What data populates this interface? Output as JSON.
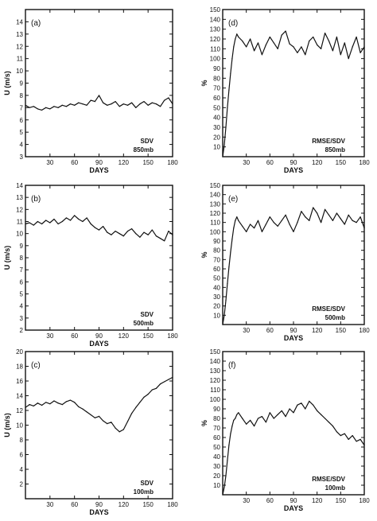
{
  "chart_data": [
    {
      "panel_label": "(a)",
      "type": "line",
      "xlabel": "DAYS",
      "ylabel": "U (m/s)",
      "xlim": [
        0,
        180
      ],
      "ylim": [
        3,
        15
      ],
      "xticks": [
        30,
        60,
        90,
        120,
        150,
        180
      ],
      "yticks": [
        3,
        4,
        5,
        6,
        7,
        8,
        9,
        10,
        11,
        12,
        13,
        14
      ],
      "annotations": [
        "SDV",
        "850mb"
      ],
      "series": [
        {
          "x": [
            0,
            5,
            10,
            15,
            20,
            25,
            30,
            35,
            40,
            45,
            50,
            55,
            60,
            65,
            70,
            75,
            80,
            85,
            90,
            95,
            100,
            105,
            110,
            115,
            120,
            125,
            130,
            135,
            140,
            145,
            150,
            155,
            160,
            165,
            170,
            175,
            180
          ],
          "values": [
            7.2,
            7.0,
            7.1,
            6.9,
            6.8,
            7.0,
            6.9,
            7.1,
            7.0,
            7.2,
            7.1,
            7.3,
            7.2,
            7.4,
            7.3,
            7.2,
            7.6,
            7.5,
            8.0,
            7.4,
            7.2,
            7.3,
            7.5,
            7.1,
            7.3,
            7.2,
            7.4,
            7.0,
            7.3,
            7.5,
            7.2,
            7.4,
            7.3,
            7.1,
            7.6,
            7.8,
            7.3
          ]
        }
      ]
    },
    {
      "panel_label": "(b)",
      "type": "line",
      "xlabel": "DAYS",
      "ylabel": "U (m/s)",
      "xlim": [
        0,
        180
      ],
      "ylim": [
        2,
        14
      ],
      "xticks": [
        30,
        60,
        90,
        120,
        150,
        180
      ],
      "yticks": [
        2,
        3,
        4,
        5,
        6,
        7,
        8,
        9,
        10,
        11,
        12,
        13,
        14
      ],
      "annotations": [
        "SDV",
        "500mb"
      ],
      "series": [
        {
          "x": [
            0,
            5,
            10,
            15,
            20,
            25,
            30,
            35,
            40,
            45,
            50,
            55,
            60,
            65,
            70,
            75,
            80,
            85,
            90,
            95,
            100,
            105,
            110,
            115,
            120,
            125,
            130,
            135,
            140,
            145,
            150,
            155,
            160,
            165,
            170,
            175,
            180
          ],
          "values": [
            10.8,
            10.9,
            10.7,
            11.0,
            10.8,
            11.1,
            10.9,
            11.2,
            10.8,
            11.0,
            11.3,
            11.1,
            11.5,
            11.2,
            11.0,
            11.3,
            10.8,
            10.5,
            10.3,
            10.6,
            10.1,
            9.9,
            10.2,
            10.0,
            9.8,
            10.2,
            10.4,
            10.0,
            9.7,
            10.1,
            9.9,
            10.3,
            9.8,
            9.6,
            9.4,
            10.2,
            9.9
          ]
        }
      ]
    },
    {
      "panel_label": "(c)",
      "type": "line",
      "xlabel": "DAYS",
      "ylabel": "U (m/s)",
      "xlim": [
        0,
        180
      ],
      "ylim": [
        0,
        20
      ],
      "xticks": [
        30,
        60,
        90,
        120,
        150,
        180
      ],
      "yticks": [
        2,
        4,
        6,
        8,
        10,
        12,
        14,
        16,
        18,
        20
      ],
      "annotations": [
        "SDV",
        "100mb"
      ],
      "series": [
        {
          "x": [
            0,
            5,
            10,
            15,
            20,
            25,
            30,
            35,
            40,
            45,
            50,
            55,
            60,
            65,
            70,
            75,
            80,
            85,
            90,
            95,
            100,
            105,
            110,
            115,
            120,
            125,
            130,
            135,
            140,
            145,
            150,
            155,
            160,
            165,
            170,
            175,
            180
          ],
          "values": [
            12.4,
            12.8,
            12.6,
            13.0,
            12.7,
            13.1,
            12.9,
            13.3,
            13.0,
            12.8,
            13.2,
            13.4,
            13.1,
            12.5,
            12.2,
            11.8,
            11.4,
            11.0,
            11.2,
            10.6,
            10.2,
            10.4,
            9.6,
            9.1,
            9.4,
            10.5,
            11.6,
            12.4,
            13.1,
            13.8,
            14.2,
            14.8,
            15.0,
            15.6,
            15.9,
            16.2,
            16.5
          ]
        }
      ]
    },
    {
      "panel_label": "(d)",
      "type": "line",
      "xlabel": "DAYS",
      "ylabel": "%",
      "xlim": [
        0,
        180
      ],
      "ylim": [
        0,
        150
      ],
      "xticks": [
        30,
        60,
        90,
        120,
        150,
        180
      ],
      "yticks": [
        10,
        20,
        30,
        40,
        50,
        60,
        70,
        80,
        90,
        100,
        110,
        120,
        130,
        140,
        150
      ],
      "annotations": [
        "RMSE/SDV",
        "850mb"
      ],
      "series": [
        {
          "x": [
            0,
            2,
            4,
            6,
            8,
            10,
            12,
            14,
            16,
            18,
            20,
            25,
            30,
            35,
            40,
            45,
            50,
            55,
            60,
            65,
            70,
            75,
            80,
            85,
            90,
            95,
            100,
            105,
            110,
            115,
            120,
            125,
            130,
            135,
            140,
            145,
            150,
            155,
            160,
            165,
            170,
            175,
            180
          ],
          "values": [
            0,
            12,
            30,
            50,
            68,
            85,
            100,
            112,
            120,
            125,
            122,
            118,
            112,
            120,
            108,
            116,
            104,
            114,
            122,
            116,
            110,
            124,
            128,
            115,
            112,
            106,
            112,
            104,
            118,
            122,
            114,
            110,
            126,
            118,
            108,
            122,
            104,
            116,
            100,
            112,
            122,
            106,
            112
          ]
        }
      ]
    },
    {
      "panel_label": "(e)",
      "type": "line",
      "xlabel": "DAYS",
      "ylabel": "%",
      "xlim": [
        0,
        180
      ],
      "ylim": [
        0,
        150
      ],
      "xticks": [
        30,
        60,
        90,
        120,
        150,
        180
      ],
      "yticks": [
        10,
        20,
        30,
        40,
        50,
        60,
        70,
        80,
        90,
        100,
        110,
        120,
        130,
        140,
        150
      ],
      "annotations": [
        "RMSE/SDV",
        "500mb"
      ],
      "series": [
        {
          "x": [
            0,
            2,
            4,
            6,
            8,
            10,
            12,
            14,
            16,
            18,
            20,
            25,
            30,
            35,
            40,
            45,
            50,
            55,
            60,
            65,
            70,
            75,
            80,
            85,
            90,
            95,
            100,
            105,
            110,
            115,
            120,
            125,
            130,
            135,
            140,
            145,
            150,
            155,
            160,
            165,
            170,
            175,
            180
          ],
          "values": [
            0,
            10,
            26,
            44,
            62,
            78,
            92,
            104,
            112,
            116,
            112,
            106,
            100,
            108,
            104,
            112,
            100,
            108,
            116,
            110,
            106,
            112,
            118,
            108,
            100,
            110,
            122,
            116,
            112,
            126,
            120,
            110,
            124,
            118,
            112,
            120,
            114,
            108,
            118,
            112,
            110,
            116,
            104
          ]
        }
      ]
    },
    {
      "panel_label": "(f)",
      "type": "line",
      "xlabel": "DAYS",
      "ylabel": "%",
      "xlim": [
        0,
        180
      ],
      "ylim": [
        0,
        150
      ],
      "xticks": [
        30,
        60,
        90,
        120,
        150,
        180
      ],
      "yticks": [
        10,
        20,
        30,
        40,
        50,
        60,
        70,
        80,
        90,
        100,
        110,
        120,
        130,
        140,
        150
      ],
      "annotations": [
        "RMSE/SDV",
        "100mb"
      ],
      "series": [
        {
          "x": [
            0,
            2,
            4,
            6,
            8,
            10,
            12,
            14,
            16,
            18,
            20,
            25,
            30,
            35,
            40,
            45,
            50,
            55,
            60,
            65,
            70,
            75,
            80,
            85,
            90,
            95,
            100,
            105,
            110,
            115,
            120,
            125,
            130,
            135,
            140,
            145,
            150,
            155,
            160,
            165,
            170,
            175,
            180
          ],
          "values": [
            0,
            8,
            20,
            36,
            52,
            64,
            72,
            78,
            80,
            84,
            86,
            80,
            74,
            78,
            72,
            80,
            82,
            76,
            86,
            80,
            84,
            88,
            82,
            90,
            86,
            94,
            96,
            90,
            98,
            94,
            88,
            84,
            80,
            76,
            72,
            66,
            62,
            64,
            58,
            62,
            56,
            58,
            52
          ]
        }
      ]
    }
  ]
}
